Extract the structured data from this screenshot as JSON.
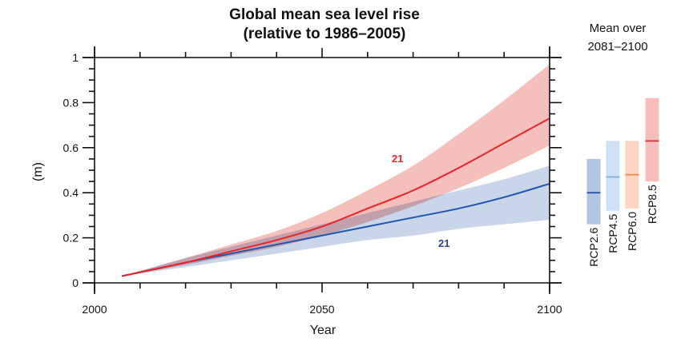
{
  "chart_data": {
    "type": "area",
    "title": "Global mean sea level rise",
    "subtitle": "(relative to 1986–2005)",
    "xlabel": "Year",
    "ylabel": "(m)",
    "xlim": [
      2000,
      2100
    ],
    "ylim": [
      0,
      1
    ],
    "x_ticks": [
      2000,
      2050,
      2100
    ],
    "x_tick_labels": [
      "2000",
      "2050",
      "2100"
    ],
    "x_minor_step": 10,
    "y_ticks": [
      0,
      0.2,
      0.4,
      0.6,
      0.8,
      1
    ],
    "y_tick_labels": [
      "0",
      "0.2",
      "0.4",
      "0.6",
      "0.8",
      "1"
    ],
    "y_minor_step": 0.05,
    "grid": false,
    "series": [
      {
        "name": "RCP2.6",
        "color": "#2255b0",
        "band_color": "#b7c8e3",
        "x": [
          2006,
          2020,
          2030,
          2040,
          2050,
          2060,
          2070,
          2080,
          2090,
          2100
        ],
        "mean": [
          0.03,
          0.09,
          0.13,
          0.17,
          0.21,
          0.25,
          0.29,
          0.33,
          0.38,
          0.44
        ],
        "lower": [
          0.03,
          0.07,
          0.1,
          0.13,
          0.16,
          0.19,
          0.21,
          0.24,
          0.26,
          0.28
        ],
        "upper": [
          0.03,
          0.11,
          0.16,
          0.21,
          0.26,
          0.31,
          0.36,
          0.41,
          0.46,
          0.52
        ],
        "annotation": "21"
      },
      {
        "name": "RCP8.5",
        "color": "#e8252a",
        "band_color": "#f2aaa4",
        "x": [
          2006,
          2020,
          2030,
          2040,
          2050,
          2060,
          2070,
          2080,
          2090,
          2100
        ],
        "mean": [
          0.03,
          0.09,
          0.14,
          0.19,
          0.25,
          0.33,
          0.41,
          0.51,
          0.62,
          0.73
        ],
        "lower": [
          0.03,
          0.08,
          0.12,
          0.16,
          0.21,
          0.27,
          0.34,
          0.42,
          0.51,
          0.61
        ],
        "upper": [
          0.03,
          0.11,
          0.17,
          0.23,
          0.31,
          0.41,
          0.52,
          0.66,
          0.81,
          0.97
        ],
        "annotation": "21"
      }
    ],
    "side_panel": {
      "title_line1": "Mean over",
      "title_line2": "2081–2100",
      "bars": [
        {
          "name": "RCP2.6",
          "low": 0.26,
          "high": 0.55,
          "mean": 0.4,
          "fill": "#b3c5e2",
          "line": "#2a55a8"
        },
        {
          "name": "RCP4.5",
          "low": 0.32,
          "high": 0.63,
          "mean": 0.47,
          "fill": "#cfe2f5",
          "line": "#7fb0e0"
        },
        {
          "name": "RCP6.0",
          "low": 0.33,
          "high": 0.63,
          "mean": 0.48,
          "fill": "#fcd6c0",
          "line": "#f08a40"
        },
        {
          "name": "RCP8.5",
          "low": 0.45,
          "high": 0.82,
          "mean": 0.63,
          "fill": "#f7bcbc",
          "line": "#e8252a"
        }
      ]
    }
  }
}
